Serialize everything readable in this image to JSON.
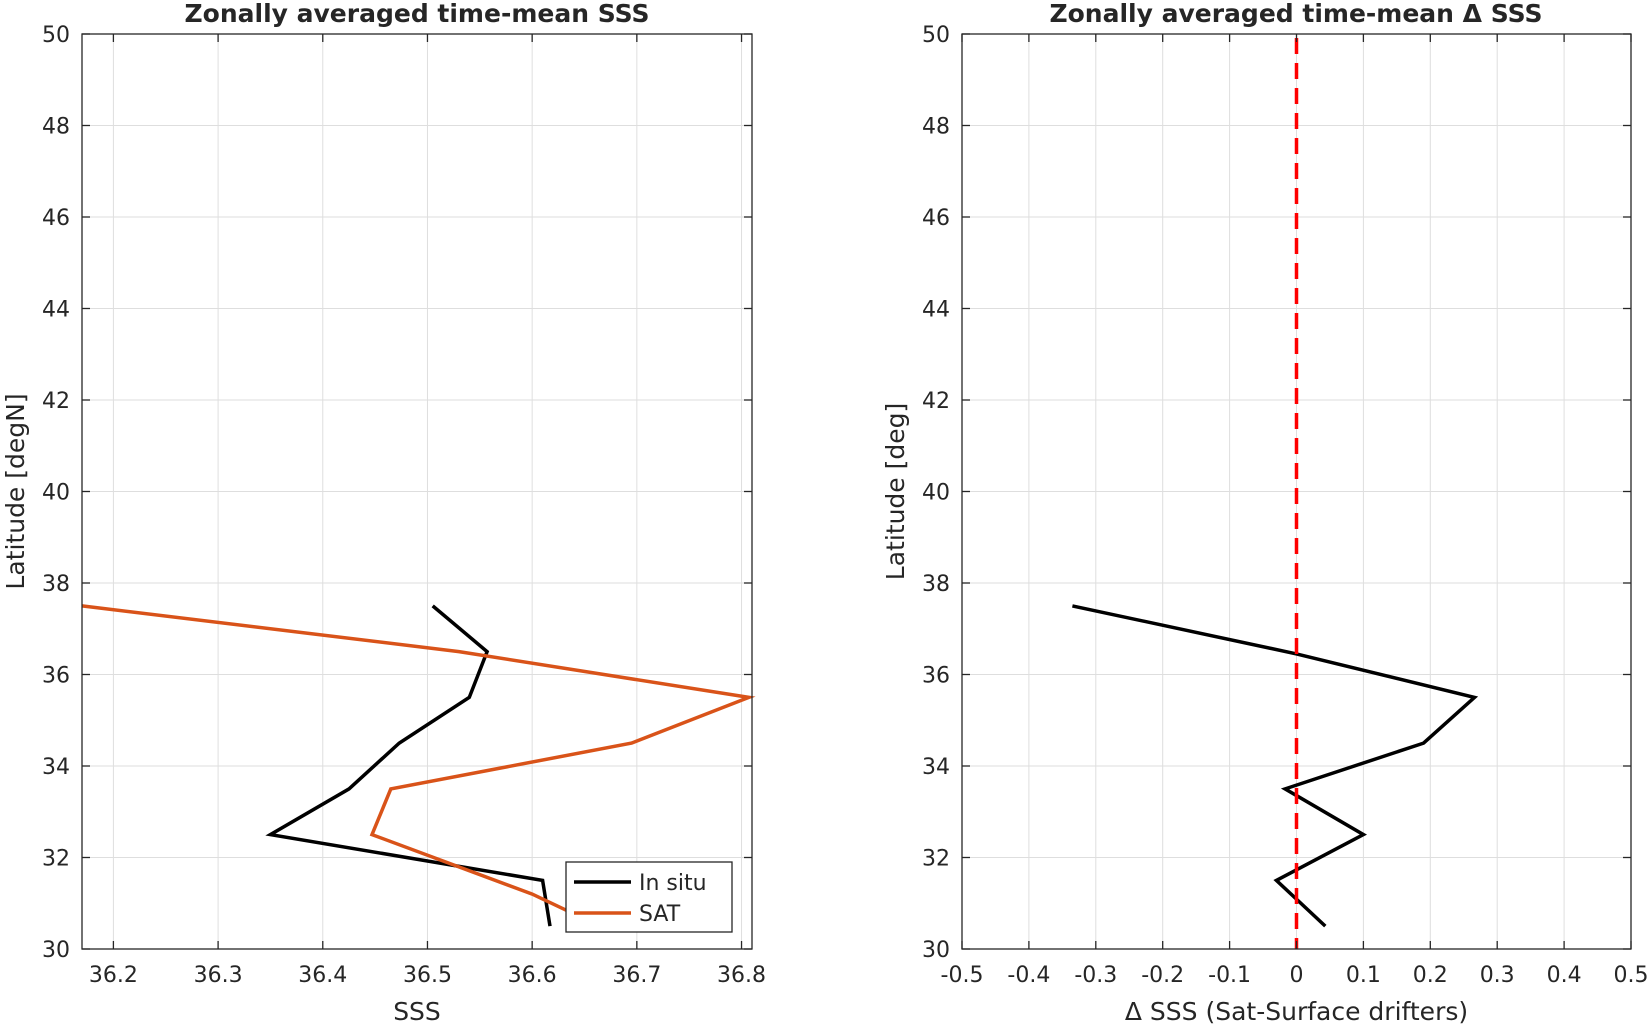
{
  "chart_data": [
    {
      "type": "line",
      "title": "Zonally averaged time-mean SSS",
      "xlabel": "SSS",
      "ylabel": "Latitude [degN]",
      "xlim": [
        36.17,
        36.81
      ],
      "ylim": [
        30,
        50
      ],
      "xticks": [
        36.2,
        36.3,
        36.4,
        36.5,
        36.6,
        36.7,
        36.8
      ],
      "xtick_labels": [
        "36.2",
        "36.3",
        "36.4",
        "36.5",
        "36.6",
        "36.7",
        "36.8"
      ],
      "yticks": [
        30,
        32,
        34,
        36,
        38,
        40,
        42,
        44,
        46,
        48,
        50
      ],
      "ytick_labels": [
        "30",
        "32",
        "34",
        "36",
        "38",
        "40",
        "42",
        "44",
        "46",
        "48",
        "50"
      ],
      "grid": true,
      "legend_position": "bottom-right",
      "series": [
        {
          "name": "In situ",
          "color": "#000000",
          "points": [
            [
              36.505,
              37.5
            ],
            [
              36.557,
              36.5
            ],
            [
              36.54,
              35.5
            ],
            [
              36.473,
              34.5
            ],
            [
              36.425,
              33.5
            ],
            [
              36.35,
              32.5
            ],
            [
              36.61,
              31.5
            ],
            [
              36.617,
              30.5
            ]
          ]
        },
        {
          "name": "SAT",
          "color": "#d95319",
          "points": [
            [
              36.17,
              37.5
            ],
            [
              36.53,
              36.5
            ],
            [
              36.807,
              35.5
            ],
            [
              36.695,
              34.5
            ],
            [
              36.465,
              33.5
            ],
            [
              36.447,
              32.5
            ],
            [
              36.6,
              31.2
            ],
            [
              36.637,
              30.8
            ]
          ]
        }
      ]
    },
    {
      "type": "line",
      "title": "Zonally averaged time-mean Δ SSS",
      "xlabel": "Δ SSS (Sat-Surface drifters)",
      "ylabel": "Latitude [deg]",
      "xlim": [
        -0.5,
        0.5
      ],
      "ylim": [
        30,
        50
      ],
      "xticks": [
        -0.5,
        -0.4,
        -0.3,
        -0.2,
        -0.1,
        0,
        0.1,
        0.2,
        0.3,
        0.4,
        0.5
      ],
      "xtick_labels": [
        "-0.5",
        "-0.4",
        "-0.3",
        "-0.2",
        "-0.1",
        "0",
        "0.1",
        "0.2",
        "0.3",
        "0.4",
        "0.5"
      ],
      "yticks": [
        30,
        32,
        34,
        36,
        38,
        40,
        42,
        44,
        46,
        48,
        50
      ],
      "ytick_labels": [
        "30",
        "32",
        "34",
        "36",
        "38",
        "40",
        "42",
        "44",
        "46",
        "48",
        "50"
      ],
      "grid": true,
      "series": [
        {
          "color": "#000000",
          "points": [
            [
              -0.335,
              37.5
            ],
            [
              0.0,
              36.45
            ],
            [
              0.266,
              35.5
            ],
            [
              0.19,
              34.5
            ],
            [
              -0.017,
              33.5
            ],
            [
              0.1,
              32.5
            ],
            [
              -0.03,
              31.5
            ],
            [
              0.043,
              30.5
            ]
          ]
        }
      ],
      "reference_line": {
        "x": 0,
        "color": "#ff0000",
        "style": "dashed"
      }
    }
  ]
}
